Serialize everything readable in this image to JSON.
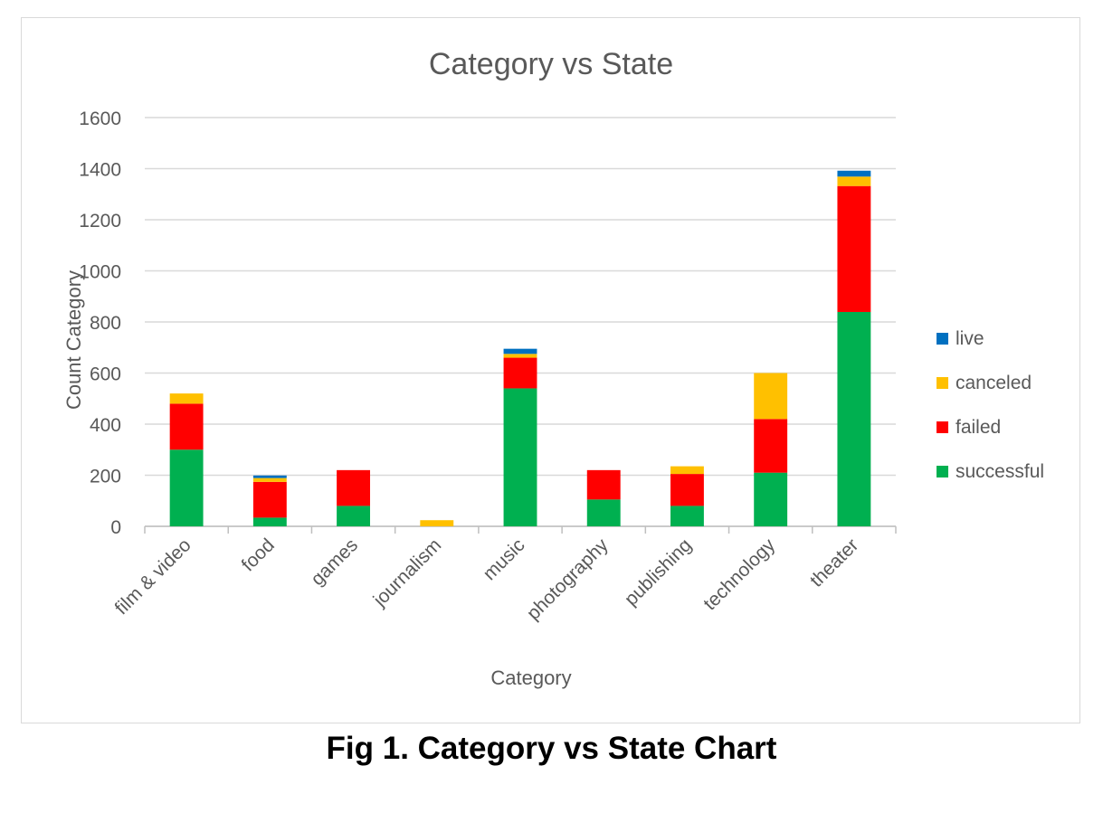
{
  "caption": "Fig 1. Category vs State Chart",
  "chart_data": {
    "type": "bar",
    "stacked": true,
    "title": "Category vs State",
    "xlabel": "Category",
    "ylabel": "Count Category",
    "ylim": [
      0,
      1600
    ],
    "yticks": [
      "0",
      "200",
      "400",
      "600",
      "800",
      "1000",
      "1200",
      "1400",
      "1600"
    ],
    "grid": true,
    "legend_position": "right",
    "categories": [
      "film & video",
      "food",
      "games",
      "journalism",
      "music",
      "photography",
      "publishing",
      "technology",
      "theater"
    ],
    "series": [
      {
        "name": "successful",
        "color": "#00b050",
        "values": [
          300,
          34,
          80,
          0,
          540,
          105,
          80,
          210,
          839
        ]
      },
      {
        "name": "failed",
        "color": "#ff0000",
        "values": [
          180,
          140,
          140,
          0,
          120,
          115,
          125,
          210,
          493
        ]
      },
      {
        "name": "canceled",
        "color": "#ffc000",
        "values": [
          40,
          15,
          0,
          24,
          15,
          0,
          30,
          180,
          37
        ]
      },
      {
        "name": "live",
        "color": "#0070c0",
        "values": [
          0,
          10,
          0,
          0,
          20,
          0,
          0,
          0,
          23
        ]
      }
    ]
  }
}
